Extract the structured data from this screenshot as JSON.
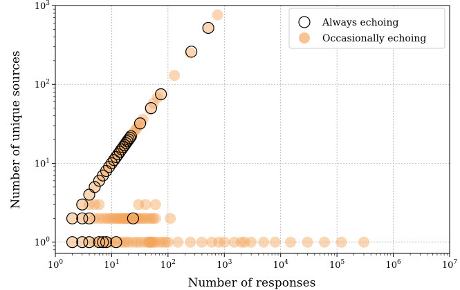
{
  "chart_data": {
    "type": "scatter",
    "xscale": "log",
    "yscale": "log",
    "xlim": [
      1,
      10000000
    ],
    "ylim": [
      0.72,
      1000
    ],
    "grid": true,
    "legend_position": "top-right",
    "xlabel": "Number of responses",
    "ylabel": "Number of unique sources",
    "x_ticks": [
      {
        "value": 1,
        "base": "10",
        "exp": "0"
      },
      {
        "value": 10,
        "base": "10",
        "exp": "1"
      },
      {
        "value": 100,
        "base": "10",
        "exp": "2"
      },
      {
        "value": 1000,
        "base": "10",
        "exp": "3"
      },
      {
        "value": 10000,
        "base": "10",
        "exp": "4"
      },
      {
        "value": 100000,
        "base": "10",
        "exp": "5"
      },
      {
        "value": 1000000,
        "base": "10",
        "exp": "6"
      },
      {
        "value": 10000000,
        "base": "10",
        "exp": "7"
      }
    ],
    "y_ticks": [
      {
        "value": 1,
        "base": "10",
        "exp": "0"
      },
      {
        "value": 10,
        "base": "10",
        "exp": "1"
      },
      {
        "value": 100,
        "base": "10",
        "exp": "2"
      },
      {
        "value": 1000,
        "base": "10",
        "exp": "3"
      }
    ],
    "series": [
      {
        "name": "Occasionally echoing",
        "color": "#f5a35a",
        "marker": "filled-circle",
        "points": [
          [
            2,
            2
          ],
          [
            3,
            2
          ],
          [
            4,
            2
          ],
          [
            5,
            2
          ],
          [
            6,
            2
          ],
          [
            7,
            2
          ],
          [
            8,
            2
          ],
          [
            9,
            2
          ],
          [
            10,
            2
          ],
          [
            11,
            2
          ],
          [
            12,
            2
          ],
          [
            13,
            2
          ],
          [
            14,
            2
          ],
          [
            15,
            2
          ],
          [
            16,
            2
          ],
          [
            17,
            2
          ],
          [
            18,
            2
          ],
          [
            19,
            2
          ],
          [
            20,
            2
          ],
          [
            22,
            2
          ],
          [
            24,
            2
          ],
          [
            26,
            2
          ],
          [
            28,
            2
          ],
          [
            30,
            2
          ],
          [
            33,
            2
          ],
          [
            36,
            2
          ],
          [
            40,
            2
          ],
          [
            45,
            2
          ],
          [
            50,
            2
          ],
          [
            55,
            2
          ],
          [
            60,
            2
          ],
          [
            110,
            2
          ],
          [
            2,
            1
          ],
          [
            3,
            1
          ],
          [
            4,
            1
          ],
          [
            5,
            1
          ],
          [
            6,
            1
          ],
          [
            7,
            1
          ],
          [
            8,
            1
          ],
          [
            9,
            1
          ],
          [
            10,
            1
          ],
          [
            12,
            1
          ],
          [
            14,
            1
          ],
          [
            16,
            1
          ],
          [
            18,
            1
          ],
          [
            20,
            1
          ],
          [
            24,
            1
          ],
          [
            28,
            1
          ],
          [
            32,
            1
          ],
          [
            38,
            1
          ],
          [
            44,
            1
          ],
          [
            46,
            1
          ],
          [
            48,
            1
          ],
          [
            50,
            1
          ],
          [
            52,
            1
          ],
          [
            55,
            1
          ],
          [
            60,
            1
          ],
          [
            70,
            1
          ],
          [
            80,
            1
          ],
          [
            90,
            1
          ],
          [
            100,
            1
          ],
          [
            150,
            1
          ],
          [
            250,
            1
          ],
          [
            400,
            1
          ],
          [
            600,
            1
          ],
          [
            800,
            1
          ],
          [
            1000,
            1
          ],
          [
            1500,
            1
          ],
          [
            2000,
            1
          ],
          [
            2300,
            1
          ],
          [
            3000,
            1
          ],
          [
            5000,
            1
          ],
          [
            8000,
            1
          ],
          [
            15000,
            1
          ],
          [
            30000,
            1
          ],
          [
            60000,
            1
          ],
          [
            120000,
            1
          ],
          [
            300000,
            1
          ],
          [
            3,
            3
          ],
          [
            4,
            3
          ],
          [
            5,
            3
          ],
          [
            6,
            3
          ],
          [
            30,
            3
          ],
          [
            40,
            3
          ],
          [
            60,
            3
          ],
          [
            4,
            4
          ],
          [
            5,
            5
          ],
          [
            6,
            6
          ],
          [
            7,
            7
          ],
          [
            8,
            8
          ],
          [
            9,
            9
          ],
          [
            10,
            10
          ],
          [
            11,
            11
          ],
          [
            12,
            12
          ],
          [
            13,
            13
          ],
          [
            14,
            14
          ],
          [
            15,
            15
          ],
          [
            16,
            16
          ],
          [
            17,
            17
          ],
          [
            18,
            18
          ],
          [
            19,
            19
          ],
          [
            20,
            20
          ],
          [
            22,
            22
          ],
          [
            24,
            24
          ],
          [
            26,
            26
          ],
          [
            28,
            28
          ],
          [
            30,
            30
          ],
          [
            33,
            33
          ],
          [
            36,
            36
          ],
          [
            48,
            48
          ],
          [
            55,
            58
          ],
          [
            65,
            68
          ],
          [
            75,
            75
          ],
          [
            130,
            130
          ],
          [
            250,
            250
          ],
          [
            520,
            520
          ],
          [
            760,
            760
          ]
        ]
      },
      {
        "name": "Always echoing",
        "color": "#000000",
        "marker": "hollow-circle",
        "points": [
          [
            2,
            2
          ],
          [
            3,
            2
          ],
          [
            4,
            2
          ],
          [
            24,
            2
          ],
          [
            2,
            1
          ],
          [
            3,
            1
          ],
          [
            4,
            1
          ],
          [
            6,
            1
          ],
          [
            7,
            1
          ],
          [
            8,
            1
          ],
          [
            12,
            1
          ],
          [
            3,
            3
          ],
          [
            4,
            4
          ],
          [
            5,
            5
          ],
          [
            6,
            6
          ],
          [
            7,
            7
          ],
          [
            8,
            8
          ],
          [
            9,
            9
          ],
          [
            10,
            10
          ],
          [
            11,
            11
          ],
          [
            12,
            12
          ],
          [
            13,
            13
          ],
          [
            14,
            14
          ],
          [
            15,
            15
          ],
          [
            16,
            16
          ],
          [
            17,
            17
          ],
          [
            18,
            18
          ],
          [
            19,
            19
          ],
          [
            20,
            20
          ],
          [
            21,
            21
          ],
          [
            22,
            22
          ],
          [
            32,
            32
          ],
          [
            50,
            50
          ],
          [
            75,
            75
          ],
          [
            260,
            260
          ],
          [
            520,
            520
          ]
        ]
      }
    ]
  }
}
